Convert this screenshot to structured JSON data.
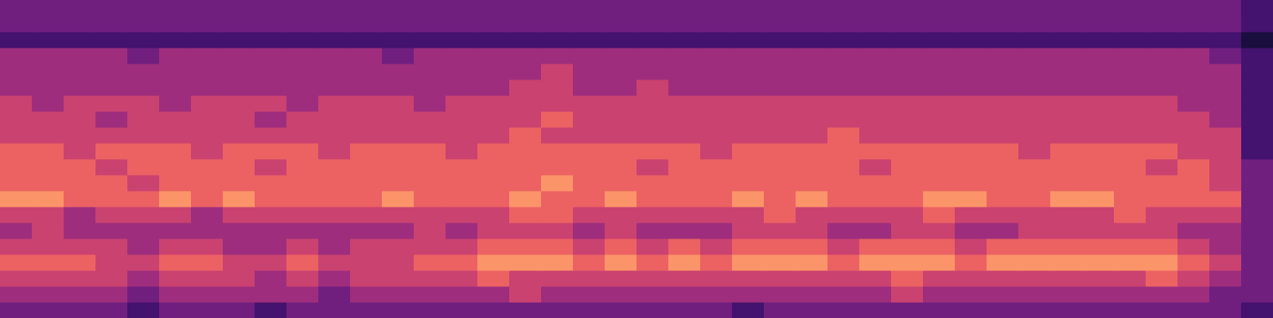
{
  "chart_data": {
    "type": "heatmap",
    "xlim": [
      0,
      40
    ],
    "ylim": [
      0,
      20
    ],
    "zlim": [
      0,
      9
    ],
    "tick_labels": false,
    "grid": false,
    "cells": [
      [
        3,
        3,
        3,
        3,
        2,
        3,
        3,
        3,
        2,
        3,
        3,
        3,
        3,
        3,
        3,
        3,
        3,
        3,
        3,
        3,
        3,
        3,
        3,
        2,
        3,
        3,
        3,
        3,
        3,
        3,
        3,
        3,
        3,
        3,
        3,
        3,
        3,
        3,
        3,
        2
      ],
      [
        4,
        4,
        4,
        4,
        3,
        4,
        4,
        4,
        4,
        4,
        3,
        4,
        4,
        4,
        4,
        4,
        5,
        4,
        4,
        4,
        4,
        4,
        4,
        4,
        4,
        4,
        4,
        4,
        5,
        4,
        4,
        4,
        4,
        4,
        4,
        4,
        4,
        4,
        3,
        3
      ],
      [
        5,
        5,
        5,
        5,
        4,
        5,
        5,
        5,
        4,
        5,
        4,
        5,
        5,
        5,
        5,
        6,
        5,
        5,
        5,
        5,
        5,
        5,
        5,
        5,
        5,
        5,
        5,
        5,
        6,
        5,
        5,
        5,
        5,
        5,
        5,
        5,
        6,
        5,
        4,
        3
      ],
      [
        6,
        6,
        6,
        5,
        5,
        6,
        6,
        5,
        5,
        6,
        5,
        5,
        5,
        6,
        6,
        7,
        7,
        7,
        6,
        7,
        6,
        7,
        6,
        7,
        7,
        7,
        6,
        7,
        7,
        7,
        6,
        7,
        7,
        7,
        7,
        7,
        7,
        6,
        5,
        3
      ],
      [
        5,
        5,
        5,
        5,
        4,
        5,
        5,
        4,
        4,
        5,
        4,
        5,
        5,
        5,
        5,
        6,
        6,
        6,
        5,
        6,
        5,
        6,
        5,
        6,
        6,
        6,
        5,
        6,
        6,
        6,
        5,
        6,
        6,
        6,
        6,
        6,
        6,
        5,
        4,
        3
      ],
      [
        4,
        5,
        4,
        4,
        4,
        4,
        4,
        4,
        4,
        4,
        4,
        4,
        4,
        5,
        4,
        5,
        5,
        5,
        4,
        5,
        4,
        4,
        4,
        5,
        5,
        5,
        4,
        4,
        5,
        5,
        4,
        4,
        5,
        5,
        5,
        5,
        5,
        4,
        4,
        3
      ],
      [
        5,
        5,
        4,
        5,
        5,
        5,
        4,
        5,
        5,
        5,
        5,
        5,
        5,
        5,
        5,
        5,
        6,
        6,
        5,
        5,
        5,
        5,
        5,
        5,
        6,
        5,
        5,
        5,
        5,
        6,
        5,
        5,
        5,
        5,
        5,
        6,
        5,
        5,
        5,
        3
      ],
      [
        7,
        7,
        6,
        6,
        6,
        7,
        6,
        7,
        6,
        6,
        6,
        6,
        7,
        6,
        6,
        6,
        7,
        6,
        6,
        7,
        6,
        6,
        6,
        7,
        6,
        7,
        6,
        6,
        6,
        7,
        7,
        6,
        6,
        7,
        7,
        6,
        6,
        6,
        6,
        3
      ],
      [
        6,
        6,
        6,
        6,
        5,
        6,
        6,
        6,
        6,
        6,
        6,
        6,
        6,
        6,
        6,
        6,
        6,
        7,
        6,
        6,
        6,
        6,
        6,
        6,
        6,
        6,
        6,
        6,
        6,
        6,
        6,
        6,
        6,
        6,
        6,
        6,
        6,
        6,
        5,
        3
      ],
      [
        6,
        6,
        6,
        5,
        6,
        6,
        6,
        6,
        5,
        6,
        6,
        6,
        6,
        6,
        6,
        6,
        6,
        6,
        6,
        6,
        5,
        6,
        6,
        6,
        6,
        6,
        6,
        5,
        6,
        6,
        6,
        6,
        6,
        6,
        6,
        6,
        5,
        6,
        5,
        3
      ],
      [
        6,
        6,
        5,
        6,
        6,
        6,
        5,
        6,
        6,
        6,
        5,
        6,
        6,
        6,
        5,
        6,
        6,
        6,
        6,
        6,
        6,
        6,
        5,
        6,
        6,
        6,
        6,
        6,
        6,
        6,
        6,
        6,
        5,
        6,
        6,
        6,
        6,
        5,
        5,
        2
      ],
      [
        5,
        5,
        5,
        5,
        5,
        5,
        5,
        5,
        5,
        5,
        5,
        5,
        5,
        5,
        5,
        5,
        6,
        5,
        5,
        5,
        5,
        5,
        5,
        5,
        5,
        5,
        6,
        5,
        5,
        5,
        5,
        5,
        5,
        5,
        5,
        5,
        5,
        5,
        5,
        2
      ],
      [
        5,
        5,
        5,
        4,
        5,
        5,
        5,
        5,
        4,
        5,
        5,
        5,
        5,
        5,
        5,
        5,
        5,
        6,
        5,
        5,
        5,
        5,
        5,
        5,
        5,
        5,
        5,
        5,
        5,
        5,
        5,
        5,
        5,
        5,
        5,
        5,
        5,
        5,
        4,
        2
      ],
      [
        5,
        4,
        5,
        5,
        5,
        4,
        5,
        5,
        5,
        4,
        5,
        5,
        5,
        4,
        5,
        5,
        5,
        5,
        5,
        5,
        5,
        5,
        5,
        5,
        5,
        5,
        5,
        5,
        5,
        5,
        5,
        5,
        5,
        5,
        5,
        5,
        5,
        4,
        4,
        2
      ],
      [
        4,
        4,
        4,
        4,
        4,
        4,
        4,
        4,
        4,
        4,
        4,
        4,
        4,
        4,
        4,
        4,
        5,
        5,
        4,
        4,
        5,
        4,
        4,
        4,
        4,
        4,
        4,
        4,
        4,
        4,
        4,
        4,
        4,
        4,
        4,
        4,
        4,
        4,
        4,
        2
      ],
      [
        4,
        4,
        4,
        4,
        4,
        4,
        4,
        4,
        4,
        4,
        4,
        4,
        4,
        4,
        4,
        4,
        4,
        5,
        4,
        4,
        4,
        4,
        4,
        4,
        4,
        4,
        4,
        4,
        4,
        4,
        4,
        4,
        4,
        4,
        4,
        4,
        4,
        4,
        4,
        2
      ],
      [
        4,
        4,
        4,
        4,
        3,
        4,
        4,
        4,
        4,
        4,
        4,
        4,
        3,
        4,
        4,
        4,
        4,
        4,
        4,
        4,
        4,
        4,
        4,
        4,
        4,
        4,
        4,
        4,
        4,
        4,
        4,
        4,
        4,
        4,
        4,
        4,
        4,
        4,
        3,
        2
      ],
      [
        2,
        2,
        2,
        2,
        2,
        2,
        2,
        2,
        2,
        2,
        2,
        2,
        2,
        2,
        2,
        2,
        2,
        2,
        2,
        2,
        2,
        2,
        2,
        2,
        2,
        2,
        2,
        2,
        2,
        2,
        2,
        2,
        2,
        2,
        2,
        2,
        2,
        2,
        2,
        1
      ],
      [
        3,
        3,
        3,
        3,
        3,
        3,
        3,
        3,
        3,
        3,
        3,
        3,
        3,
        3,
        3,
        3,
        3,
        3,
        3,
        3,
        3,
        3,
        3,
        3,
        3,
        3,
        3,
        3,
        3,
        3,
        3,
        3,
        3,
        3,
        3,
        3,
        3,
        3,
        3,
        2
      ],
      [
        3,
        3,
        3,
        3,
        3,
        3,
        3,
        3,
        3,
        3,
        3,
        3,
        3,
        3,
        3,
        3,
        3,
        3,
        3,
        3,
        3,
        3,
        3,
        3,
        3,
        3,
        3,
        3,
        3,
        3,
        3,
        3,
        3,
        3,
        3,
        3,
        3,
        3,
        3,
        2
      ]
    ]
  }
}
